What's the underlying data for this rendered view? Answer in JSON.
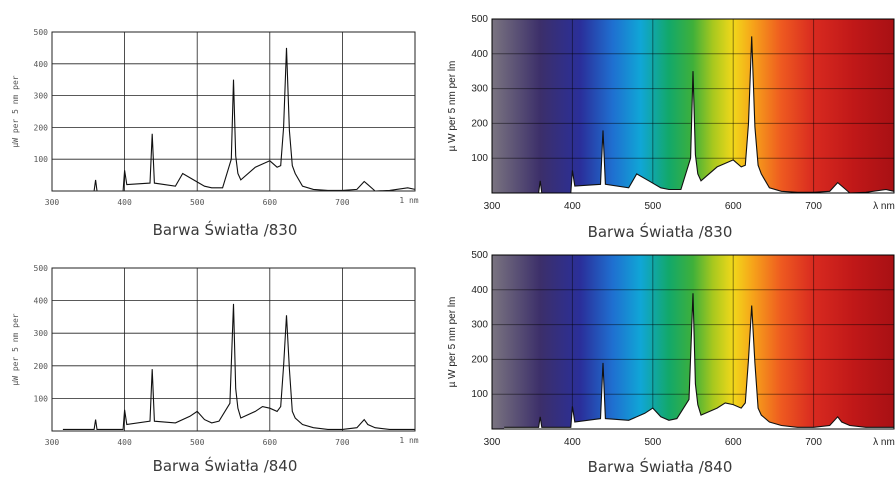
{
  "palette": {
    "line": "#111111",
    "grid": "#222222",
    "caption": "#3a3a3a"
  },
  "chart_data": [
    {
      "type": "line",
      "style": "plain",
      "caption": "Barwa Światła /830",
      "ylabel": "µW per 5 nm per",
      "xunit": "1 nm",
      "xlim": [
        300,
        800
      ],
      "ylim": [
        0,
        500
      ],
      "xticks": [
        300,
        400,
        500,
        600,
        700
      ],
      "yticks": [
        100,
        200,
        300,
        400,
        500
      ],
      "series": [
        {
          "x": [
            315,
            358,
            360,
            362,
            398,
            400,
            403,
            435,
            438,
            441,
            470,
            480,
            495,
            510,
            520,
            535,
            547,
            550,
            553,
            556,
            560,
            580,
            590,
            600,
            610,
            615,
            619,
            623,
            627,
            631,
            635,
            645,
            660,
            680,
            700,
            720,
            730,
            735,
            745,
            765,
            790,
            800
          ],
          "y": [
            0,
            0,
            35,
            0,
            0,
            65,
            20,
            25,
            180,
            25,
            15,
            55,
            35,
            15,
            10,
            10,
            100,
            350,
            110,
            55,
            35,
            75,
            85,
            95,
            75,
            80,
            200,
            450,
            190,
            80,
            55,
            15,
            5,
            2,
            2,
            5,
            30,
            20,
            0,
            2,
            10,
            5
          ]
        }
      ]
    },
    {
      "type": "line",
      "style": "spectrum",
      "caption": "Barwa Światła /830",
      "ylabel": "µ W per 5 nm per lm",
      "xunit": "λ nm",
      "xlim": [
        300,
        800
      ],
      "ylim": [
        0,
        500
      ],
      "xticks": [
        300,
        400,
        500,
        600,
        700
      ],
      "yticks": [
        100,
        200,
        300,
        400,
        500
      ],
      "series": [
        {
          "x": [
            315,
            358,
            360,
            362,
            398,
            400,
            403,
            435,
            438,
            441,
            470,
            480,
            495,
            510,
            520,
            535,
            547,
            550,
            553,
            556,
            560,
            580,
            590,
            600,
            610,
            615,
            619,
            623,
            627,
            631,
            635,
            645,
            660,
            680,
            700,
            720,
            730,
            735,
            745,
            765,
            790,
            800
          ],
          "y": [
            0,
            0,
            35,
            0,
            0,
            65,
            20,
            25,
            180,
            25,
            15,
            55,
            35,
            15,
            10,
            10,
            100,
            350,
            110,
            55,
            35,
            75,
            85,
            95,
            75,
            80,
            200,
            450,
            190,
            80,
            55,
            15,
            5,
            2,
            2,
            5,
            30,
            20,
            0,
            2,
            10,
            5
          ]
        }
      ]
    },
    {
      "type": "line",
      "style": "plain",
      "caption": "Barwa Światła /840",
      "ylabel": "µW per 5 nm per",
      "xunit": "1 nm",
      "xlim": [
        300,
        800
      ],
      "ylim": [
        0,
        500
      ],
      "xticks": [
        300,
        400,
        500,
        600,
        700
      ],
      "yticks": [
        100,
        200,
        300,
        400,
        500
      ],
      "series": [
        {
          "x": [
            315,
            358,
            360,
            362,
            398,
            400,
            403,
            435,
            438,
            441,
            470,
            490,
            500,
            510,
            520,
            530,
            545,
            550,
            553,
            556,
            560,
            580,
            590,
            600,
            610,
            615,
            619,
            623,
            627,
            631,
            635,
            645,
            660,
            680,
            700,
            720,
            730,
            735,
            745,
            765,
            790,
            800
          ],
          "y": [
            5,
            5,
            35,
            5,
            5,
            65,
            20,
            30,
            190,
            30,
            25,
            45,
            60,
            35,
            25,
            30,
            85,
            390,
            130,
            70,
            40,
            60,
            75,
            70,
            60,
            75,
            200,
            355,
            190,
            60,
            40,
            20,
            10,
            5,
            5,
            10,
            35,
            20,
            10,
            5,
            5,
            5
          ]
        }
      ]
    },
    {
      "type": "line",
      "style": "spectrum",
      "caption": "Barwa Światła /840",
      "ylabel": "µ W per 5 nm per lm",
      "xunit": "λ nm",
      "xlim": [
        300,
        800
      ],
      "ylim": [
        0,
        500
      ],
      "xticks": [
        300,
        400,
        500,
        600,
        700
      ],
      "yticks": [
        100,
        200,
        300,
        400,
        500
      ],
      "series": [
        {
          "x": [
            315,
            358,
            360,
            362,
            398,
            400,
            403,
            435,
            438,
            441,
            470,
            490,
            500,
            510,
            520,
            530,
            545,
            550,
            553,
            556,
            560,
            580,
            590,
            600,
            610,
            615,
            619,
            623,
            627,
            631,
            635,
            645,
            660,
            680,
            700,
            720,
            730,
            735,
            745,
            765,
            790,
            800
          ],
          "y": [
            5,
            5,
            35,
            5,
            5,
            65,
            20,
            30,
            190,
            30,
            25,
            45,
            60,
            35,
            25,
            30,
            85,
            390,
            130,
            70,
            40,
            60,
            75,
            70,
            60,
            75,
            200,
            355,
            190,
            60,
            40,
            20,
            10,
            5,
            5,
            10,
            35,
            20,
            10,
            5,
            5,
            5
          ]
        }
      ]
    }
  ]
}
